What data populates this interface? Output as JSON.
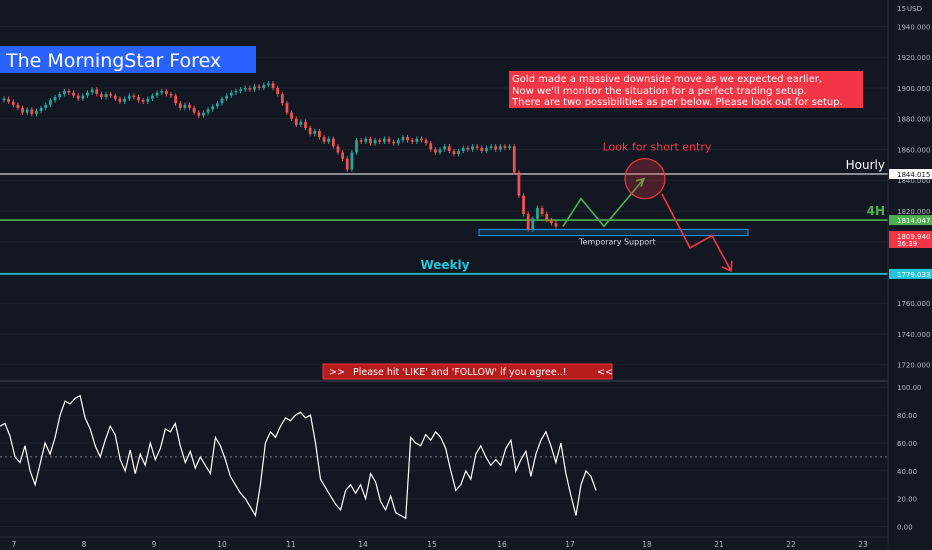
{
  "chart_data": {
    "type": "candlestick",
    "instrument_label": "The MorningStar Forex",
    "currency_label": "USD",
    "price_axis": {
      "ymin": 1712,
      "ymax": 1952,
      "ticks": [
        1720,
        1740,
        1760,
        1780,
        1800,
        1820,
        1840,
        1860,
        1880,
        1900,
        1920,
        1940
      ],
      "tick_labels": [
        "1720.000",
        "1740.000",
        "1760.000",
        "1780.000",
        "1800.000",
        "1820.000",
        "1840.000",
        "1860.000",
        "1880.000",
        "1900.000",
        "1920.000",
        "1940.000"
      ],
      "top_label": "15"
    },
    "x_axis": {
      "ticks": [
        "7",
        "8",
        "9",
        "10",
        "11",
        "14",
        "15",
        "16",
        "17",
        "18",
        "21",
        "22",
        "23"
      ]
    },
    "price_series": [
      [
        1892,
        1893
      ],
      [
        1893,
        1891
      ],
      [
        1891,
        1889
      ],
      [
        1889,
        1887
      ],
      [
        1887,
        1884
      ],
      [
        1884,
        1886
      ],
      [
        1886,
        1883
      ],
      [
        1883,
        1885
      ],
      [
        1885,
        1887
      ],
      [
        1887,
        1889
      ],
      [
        1889,
        1892
      ],
      [
        1892,
        1894
      ],
      [
        1894,
        1896
      ],
      [
        1896,
        1898
      ],
      [
        1898,
        1897
      ],
      [
        1897,
        1895
      ],
      [
        1895,
        1893
      ],
      [
        1893,
        1895
      ],
      [
        1895,
        1897
      ],
      [
        1897,
        1899
      ],
      [
        1899,
        1896
      ],
      [
        1896,
        1894
      ],
      [
        1894,
        1896
      ],
      [
        1896,
        1895
      ],
      [
        1895,
        1893
      ],
      [
        1893,
        1891
      ],
      [
        1891,
        1893
      ],
      [
        1893,
        1895
      ],
      [
        1895,
        1894
      ],
      [
        1894,
        1892
      ],
      [
        1892,
        1891
      ],
      [
        1891,
        1893
      ],
      [
        1893,
        1895
      ],
      [
        1895,
        1897
      ],
      [
        1897,
        1898
      ],
      [
        1898,
        1896
      ],
      [
        1896,
        1895
      ],
      [
        1895,
        1890
      ],
      [
        1890,
        1887
      ],
      [
        1887,
        1889
      ],
      [
        1889,
        1887
      ],
      [
        1887,
        1884
      ],
      [
        1884,
        1882
      ],
      [
        1882,
        1884
      ],
      [
        1884,
        1886
      ],
      [
        1886,
        1888
      ],
      [
        1888,
        1890
      ],
      [
        1890,
        1893
      ],
      [
        1893,
        1895
      ],
      [
        1895,
        1897
      ],
      [
        1897,
        1898
      ],
      [
        1898,
        1899
      ],
      [
        1899,
        1900
      ],
      [
        1900,
        1899
      ],
      [
        1899,
        1901
      ],
      [
        1901,
        1900
      ],
      [
        1900,
        1902
      ],
      [
        1902,
        1903
      ],
      [
        1903,
        1900
      ],
      [
        1900,
        1896
      ],
      [
        1896,
        1890
      ],
      [
        1890,
        1884
      ],
      [
        1884,
        1880
      ],
      [
        1880,
        1876
      ],
      [
        1876,
        1878
      ],
      [
        1878,
        1874
      ],
      [
        1874,
        1870
      ],
      [
        1870,
        1872
      ],
      [
        1872,
        1868
      ],
      [
        1868,
        1865
      ],
      [
        1865,
        1867
      ],
      [
        1867,
        1862
      ],
      [
        1862,
        1858
      ],
      [
        1858,
        1854
      ],
      [
        1854,
        1847
      ],
      [
        1847,
        1858
      ],
      [
        1858,
        1866
      ],
      [
        1866,
        1865
      ],
      [
        1865,
        1867
      ],
      [
        1867,
        1864
      ],
      [
        1864,
        1866
      ],
      [
        1866,
        1865
      ],
      [
        1865,
        1867
      ],
      [
        1867,
        1865
      ],
      [
        1865,
        1864
      ],
      [
        1864,
        1866
      ],
      [
        1866,
        1868
      ],
      [
        1868,
        1866
      ],
      [
        1866,
        1865
      ],
      [
        1865,
        1867
      ],
      [
        1867,
        1866
      ],
      [
        1866,
        1864
      ],
      [
        1864,
        1860
      ],
      [
        1860,
        1858
      ],
      [
        1858,
        1860
      ],
      [
        1860,
        1862
      ],
      [
        1862,
        1859
      ],
      [
        1859,
        1857
      ],
      [
        1857,
        1859
      ],
      [
        1859,
        1861
      ],
      [
        1861,
        1860
      ],
      [
        1860,
        1862
      ],
      [
        1862,
        1861
      ],
      [
        1861,
        1859
      ],
      [
        1859,
        1861
      ],
      [
        1861,
        1862
      ],
      [
        1862,
        1860
      ],
      [
        1860,
        1862
      ],
      [
        1862,
        1861
      ],
      [
        1861,
        1862
      ],
      [
        1862,
        1845
      ],
      [
        1845,
        1830
      ],
      [
        1830,
        1818
      ],
      [
        1818,
        1808
      ],
      [
        1808,
        1815
      ],
      [
        1815,
        1822
      ],
      [
        1822,
        1818
      ],
      [
        1818,
        1814
      ],
      [
        1814,
        1812
      ],
      [
        1812,
        1810
      ]
    ],
    "levels": [
      {
        "name": "Hourly",
        "value": 1844.015,
        "value_label": "1844.015",
        "color": "#ffffff"
      },
      {
        "name": "4H",
        "value": 1814.047,
        "value_label": "1814.047",
        "color": "#4caf50"
      },
      {
        "name": "Weekly",
        "value": 1779.033,
        "value_label": "1779.033",
        "color": "#26c6da"
      }
    ],
    "current_price": {
      "value_label": "1809.940",
      "countdown": "36:39",
      "color": "#f23645"
    },
    "temporary_support": {
      "label": "Temporary Support",
      "low": 1804,
      "high": 1808,
      "color": "#2196f3"
    },
    "annotation_box": {
      "lines": [
        "Gold made a massive downside move as we expected earlier,",
        "Now we'll monitor the situation for a perfect trading setup.",
        "There are two possibilities as per below. Please look out for setup."
      ],
      "color": "#f23645"
    },
    "short_entry_label": "Look for short entry",
    "projection_up": [
      [
        1813,
        1810
      ],
      [
        1815,
        1828
      ],
      [
        1817,
        1810
      ],
      [
        1819,
        1841
      ]
    ],
    "projection_down": [
      [
        1837,
        1831
      ],
      [
        1829,
        1796
      ],
      [
        1816,
        1804
      ],
      [
        1811,
        1781
      ]
    ],
    "cta_banner": "Please hit 'LIKE' and 'FOLLOW' if you agree..!",
    "cta_prefix": ">>",
    "cta_suffix": "<<",
    "rsi": {
      "ymin": -6,
      "ymax": 103,
      "ticks": [
        0,
        20,
        40,
        60,
        80,
        100
      ],
      "tick_labels": [
        "0.00",
        "20.00",
        "40.00",
        "60.00",
        "80.00",
        "100.00"
      ],
      "mid_level": 50,
      "values": [
        72,
        74,
        65,
        50,
        46,
        58,
        40,
        30,
        45,
        60,
        52,
        64,
        80,
        90,
        88,
        92,
        94,
        78,
        70,
        58,
        50,
        62,
        72,
        66,
        48,
        40,
        55,
        38,
        52,
        44,
        60,
        48,
        56,
        70,
        68,
        74,
        58,
        46,
        54,
        42,
        50,
        44,
        38,
        64,
        58,
        48,
        36,
        30,
        24,
        20,
        14,
        8,
        30,
        60,
        68,
        64,
        72,
        78,
        76,
        80,
        82,
        78,
        80,
        60,
        34,
        28,
        22,
        16,
        12,
        26,
        30,
        24,
        30,
        20,
        38,
        32,
        18,
        12,
        22,
        10,
        8,
        6,
        64,
        60,
        58,
        66,
        62,
        68,
        64,
        56,
        40,
        26,
        30,
        40,
        34,
        52,
        58,
        50,
        44,
        48,
        44,
        56,
        62,
        40,
        48,
        54,
        36,
        52,
        62,
        68,
        58,
        46,
        60,
        38,
        22,
        8,
        30,
        40,
        36,
        26
      ]
    }
  }
}
